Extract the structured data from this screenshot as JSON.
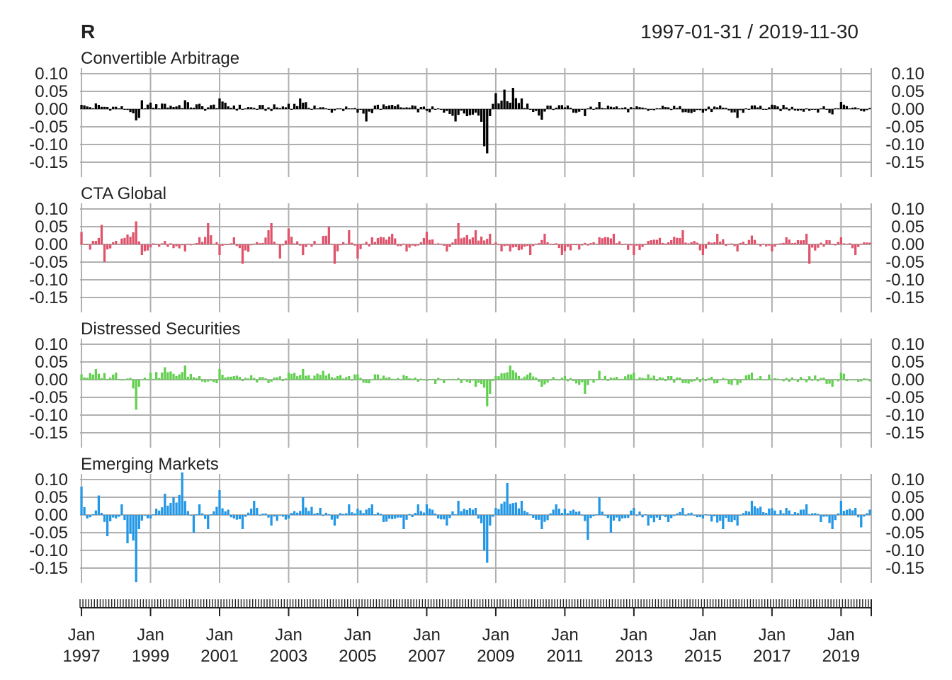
{
  "chart_data": {
    "type": "bar",
    "title": "R",
    "date_range": "1997-01-31 / 2019-11-30",
    "start": "1997-01",
    "end": "2019-11",
    "y_ticks": [
      "0.10",
      "0.05",
      "0.00",
      "-0.05",
      "-0.10",
      "-0.15"
    ],
    "ylim": [
      -0.18,
      0.12
    ],
    "grid": true,
    "x_ticks": [
      {
        "month": "Jan",
        "year": "1997"
      },
      {
        "month": "Jan",
        "year": "1999"
      },
      {
        "month": "Jan",
        "year": "2001"
      },
      {
        "month": "Jan",
        "year": "2003"
      },
      {
        "month": "Jan",
        "year": "2005"
      },
      {
        "month": "Jan",
        "year": "2007"
      },
      {
        "month": "Jan",
        "year": "2009"
      },
      {
        "month": "Jan",
        "year": "2011"
      },
      {
        "month": "Jan",
        "year": "2013"
      },
      {
        "month": "Jan",
        "year": "2015"
      },
      {
        "month": "Jan",
        "year": "2017"
      },
      {
        "month": "Jan",
        "year": "2019"
      }
    ],
    "series": [
      {
        "name": "Convertible Arbitrage",
        "color": "#000000",
        "keypoints": [
          [
            "1997-01",
            0.012
          ],
          [
            "1997-06",
            0.016
          ],
          [
            "1998-03",
            0.008
          ],
          [
            "1998-07",
            -0.012
          ],
          [
            "1998-08",
            -0.032
          ],
          [
            "1998-09",
            -0.025
          ],
          [
            "1998-10",
            0.025
          ],
          [
            "1999-06",
            0.015
          ],
          [
            "2000-01",
            0.025
          ],
          [
            "2000-06",
            0.015
          ],
          [
            "2000-09",
            0.005
          ],
          [
            "2001-01",
            0.03
          ],
          [
            "2001-06",
            0.01
          ],
          [
            "2002-06",
            0.005
          ],
          [
            "2003-01",
            0.015
          ],
          [
            "2003-05",
            0.03
          ],
          [
            "2003-10",
            0.01
          ],
          [
            "2004-04",
            -0.01
          ],
          [
            "2004-07",
            0.0
          ],
          [
            "2005-01",
            -0.01
          ],
          [
            "2005-04",
            -0.035
          ],
          [
            "2005-07",
            0.01
          ],
          [
            "2006-01",
            0.012
          ],
          [
            "2006-06",
            0.005
          ],
          [
            "2007-07",
            -0.01
          ],
          [
            "2007-11",
            -0.035
          ],
          [
            "2008-03",
            -0.02
          ],
          [
            "2008-06",
            -0.01
          ],
          [
            "2008-09",
            -0.105
          ],
          [
            "2008-10",
            -0.125
          ],
          [
            "2008-11",
            -0.02
          ],
          [
            "2009-01",
            0.045
          ],
          [
            "2009-04",
            0.055
          ],
          [
            "2009-07",
            0.06
          ],
          [
            "2009-10",
            0.03
          ],
          [
            "2010-05",
            -0.03
          ],
          [
            "2010-07",
            0.01
          ],
          [
            "2011-01",
            0.005
          ],
          [
            "2011-08",
            -0.02
          ],
          [
            "2012-01",
            0.02
          ],
          [
            "2012-06",
            0.005
          ],
          [
            "2013-06",
            -0.005
          ],
          [
            "2014-01",
            0.005
          ],
          [
            "2015-01",
            -0.01
          ],
          [
            "2015-06",
            0.005
          ],
          [
            "2016-01",
            -0.025
          ],
          [
            "2016-06",
            0.01
          ],
          [
            "2017-06",
            0.005
          ],
          [
            "2018-06",
            0.0
          ],
          [
            "2018-10",
            -0.015
          ],
          [
            "2019-01",
            0.02
          ],
          [
            "2019-06",
            0.005
          ],
          [
            "2019-11",
            0.003
          ]
        ]
      },
      {
        "name": "CTA Global",
        "color": "#df536b",
        "keypoints": [
          [
            "1997-01",
            0.035
          ],
          [
            "1997-04",
            -0.015
          ],
          [
            "1997-08",
            0.055
          ],
          [
            "1997-09",
            -0.05
          ],
          [
            "1998-01",
            0.01
          ],
          [
            "1998-08",
            0.065
          ],
          [
            "1998-10",
            -0.03
          ],
          [
            "1999-06",
            0.01
          ],
          [
            "2000-01",
            -0.02
          ],
          [
            "2000-06",
            0.02
          ],
          [
            "2000-09",
            0.06
          ],
          [
            "2001-01",
            -0.03
          ],
          [
            "2001-06",
            0.02
          ],
          [
            "2001-09",
            -0.055
          ],
          [
            "2002-06",
            0.04
          ],
          [
            "2002-07",
            0.06
          ],
          [
            "2002-10",
            -0.04
          ],
          [
            "2003-01",
            0.045
          ],
          [
            "2003-06",
            -0.03
          ],
          [
            "2004-03",
            0.05
          ],
          [
            "2004-05",
            -0.055
          ],
          [
            "2004-10",
            0.04
          ],
          [
            "2005-01",
            -0.04
          ],
          [
            "2005-06",
            0.02
          ],
          [
            "2006-01",
            0.03
          ],
          [
            "2006-06",
            -0.02
          ],
          [
            "2007-01",
            0.035
          ],
          [
            "2007-08",
            -0.02
          ],
          [
            "2007-12",
            0.06
          ],
          [
            "2008-06",
            0.04
          ],
          [
            "2008-11",
            0.03
          ],
          [
            "2009-03",
            -0.02
          ],
          [
            "2009-06",
            -0.02
          ],
          [
            "2010-01",
            -0.03
          ],
          [
            "2010-06",
            0.03
          ],
          [
            "2010-12",
            -0.03
          ],
          [
            "2011-06",
            -0.015
          ],
          [
            "2012-01",
            0.02
          ],
          [
            "2012-06",
            0.03
          ],
          [
            "2013-01",
            -0.03
          ],
          [
            "2013-06",
            0.01
          ],
          [
            "2014-06",
            0.04
          ],
          [
            "2015-01",
            -0.03
          ],
          [
            "2015-06",
            0.03
          ],
          [
            "2016-01",
            -0.02
          ],
          [
            "2016-06",
            0.025
          ],
          [
            "2017-01",
            -0.02
          ],
          [
            "2017-06",
            0.02
          ],
          [
            "2018-01",
            0.03
          ],
          [
            "2018-02",
            -0.055
          ],
          [
            "2018-06",
            0.005
          ],
          [
            "2019-01",
            0.02
          ],
          [
            "2019-06",
            -0.03
          ],
          [
            "2019-11",
            0.005
          ]
        ]
      },
      {
        "name": "Distressed Securities",
        "color": "#61d04f",
        "keypoints": [
          [
            "1997-01",
            0.015
          ],
          [
            "1997-06",
            0.03
          ],
          [
            "1998-01",
            0.02
          ],
          [
            "1998-06",
            0.005
          ],
          [
            "1998-08",
            -0.085
          ],
          [
            "1998-09",
            -0.02
          ],
          [
            "1999-01",
            0.02
          ],
          [
            "1999-06",
            0.035
          ],
          [
            "2000-01",
            0.04
          ],
          [
            "2000-06",
            0.01
          ],
          [
            "2000-12",
            -0.01
          ],
          [
            "2001-01",
            0.03
          ],
          [
            "2001-06",
            0.01
          ],
          [
            "2002-01",
            0.005
          ],
          [
            "2002-06",
            -0.01
          ],
          [
            "2003-01",
            0.02
          ],
          [
            "2003-06",
            0.03
          ],
          [
            "2004-01",
            0.025
          ],
          [
            "2004-06",
            0.01
          ],
          [
            "2005-01",
            0.015
          ],
          [
            "2005-04",
            -0.01
          ],
          [
            "2005-07",
            0.015
          ],
          [
            "2006-06",
            0.01
          ],
          [
            "2007-07",
            -0.01
          ],
          [
            "2008-01",
            -0.01
          ],
          [
            "2008-06",
            -0.02
          ],
          [
            "2008-10",
            -0.075
          ],
          [
            "2008-11",
            -0.04
          ],
          [
            "2009-01",
            0.01
          ],
          [
            "2009-06",
            0.04
          ],
          [
            "2010-01",
            0.02
          ],
          [
            "2010-05",
            -0.02
          ],
          [
            "2011-01",
            0.01
          ],
          [
            "2011-08",
            -0.04
          ],
          [
            "2012-01",
            0.025
          ],
          [
            "2012-06",
            0.005
          ],
          [
            "2013-01",
            0.02
          ],
          [
            "2014-01",
            0.01
          ],
          [
            "2014-06",
            -0.01
          ],
          [
            "2015-01",
            0.005
          ],
          [
            "2015-06",
            -0.01
          ],
          [
            "2016-01",
            -0.015
          ],
          [
            "2016-06",
            0.02
          ],
          [
            "2017-06",
            0.005
          ],
          [
            "2018-06",
            0.005
          ],
          [
            "2018-10",
            -0.02
          ],
          [
            "2019-01",
            0.02
          ],
          [
            "2019-06",
            0.0
          ],
          [
            "2019-11",
            -0.005
          ]
        ]
      },
      {
        "name": "Emerging Markets",
        "color": "#2297e6",
        "keypoints": [
          [
            "1997-01",
            0.08
          ],
          [
            "1997-03",
            -0.01
          ],
          [
            "1997-07",
            0.055
          ],
          [
            "1997-10",
            -0.06
          ],
          [
            "1998-01",
            -0.01
          ],
          [
            "1998-03",
            0.03
          ],
          [
            "1998-05",
            -0.08
          ],
          [
            "1998-08",
            -0.19
          ],
          [
            "1998-09",
            -0.04
          ],
          [
            "1999-01",
            -0.01
          ],
          [
            "1999-06",
            0.06
          ],
          [
            "1999-12",
            0.12
          ],
          [
            "2000-04",
            -0.05
          ],
          [
            "2000-06",
            0.03
          ],
          [
            "2000-09",
            -0.04
          ],
          [
            "2001-01",
            0.07
          ],
          [
            "2001-06",
            -0.01
          ],
          [
            "2001-09",
            -0.04
          ],
          [
            "2002-01",
            0.04
          ],
          [
            "2002-07",
            -0.03
          ],
          [
            "2003-01",
            -0.01
          ],
          [
            "2003-06",
            0.05
          ],
          [
            "2003-12",
            0.02
          ],
          [
            "2004-05",
            -0.03
          ],
          [
            "2004-10",
            0.03
          ],
          [
            "2005-06",
            0.03
          ],
          [
            "2005-10",
            -0.02
          ],
          [
            "2006-05",
            -0.04
          ],
          [
            "2006-10",
            0.03
          ],
          [
            "2007-01",
            0.03
          ],
          [
            "2007-08",
            -0.03
          ],
          [
            "2007-12",
            0.04
          ],
          [
            "2008-06",
            0.02
          ],
          [
            "2008-09",
            -0.1
          ],
          [
            "2008-10",
            -0.135
          ],
          [
            "2008-11",
            -0.03
          ],
          [
            "2009-01",
            0.02
          ],
          [
            "2009-05",
            0.09
          ],
          [
            "2009-10",
            0.04
          ],
          [
            "2010-05",
            -0.04
          ],
          [
            "2010-10",
            0.03
          ],
          [
            "2011-06",
            0.01
          ],
          [
            "2011-09",
            -0.07
          ],
          [
            "2012-01",
            0.05
          ],
          [
            "2012-05",
            -0.05
          ],
          [
            "2013-01",
            0.02
          ],
          [
            "2013-06",
            -0.03
          ],
          [
            "2014-01",
            -0.02
          ],
          [
            "2014-06",
            0.02
          ],
          [
            "2015-01",
            -0.01
          ],
          [
            "2015-08",
            -0.04
          ],
          [
            "2016-01",
            -0.03
          ],
          [
            "2016-06",
            0.04
          ],
          [
            "2017-06",
            0.02
          ],
          [
            "2018-01",
            0.03
          ],
          [
            "2018-06",
            -0.02
          ],
          [
            "2018-10",
            -0.04
          ],
          [
            "2019-01",
            0.04
          ],
          [
            "2019-06",
            0.02
          ],
          [
            "2019-08",
            -0.035
          ],
          [
            "2019-11",
            0.015
          ]
        ]
      }
    ]
  }
}
